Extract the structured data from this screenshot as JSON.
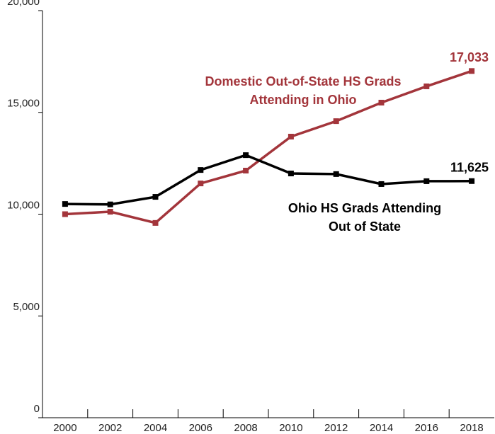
{
  "chart_data": {
    "type": "line",
    "categories": [
      "2000",
      "2002",
      "2004",
      "2006",
      "2008",
      "2010",
      "2012",
      "2014",
      "2016",
      "2018"
    ],
    "series": [
      {
        "name": "Domestic Out-of-State HS Grads Attending in Ohio",
        "color": "#a3353b",
        "values": [
          10000,
          10120,
          9570,
          11510,
          12140,
          13810,
          14570,
          15480,
          16280,
          17033
        ],
        "value_labels": [
          null,
          null,
          null,
          null,
          null,
          null,
          null,
          null,
          null,
          "17,033"
        ]
      },
      {
        "name": "Ohio HS Grads Attending Out of State",
        "color": "#000000",
        "values": [
          10500,
          10480,
          10850,
          12170,
          12900,
          12000,
          11970,
          11480,
          11620,
          11625
        ],
        "value_labels": [
          null,
          null,
          null,
          null,
          null,
          null,
          null,
          null,
          null,
          "11,625"
        ]
      }
    ],
    "ylim": [
      0,
      20000
    ],
    "yticks": [
      0,
      {
        "value": 5000,
        "label": "5,000"
      },
      {
        "value": 10000,
        "label": "10,000"
      },
      {
        "value": 15000,
        "label": "15,000"
      },
      {
        "value": 20000,
        "label": "20,000"
      }
    ],
    "grid": false
  }
}
